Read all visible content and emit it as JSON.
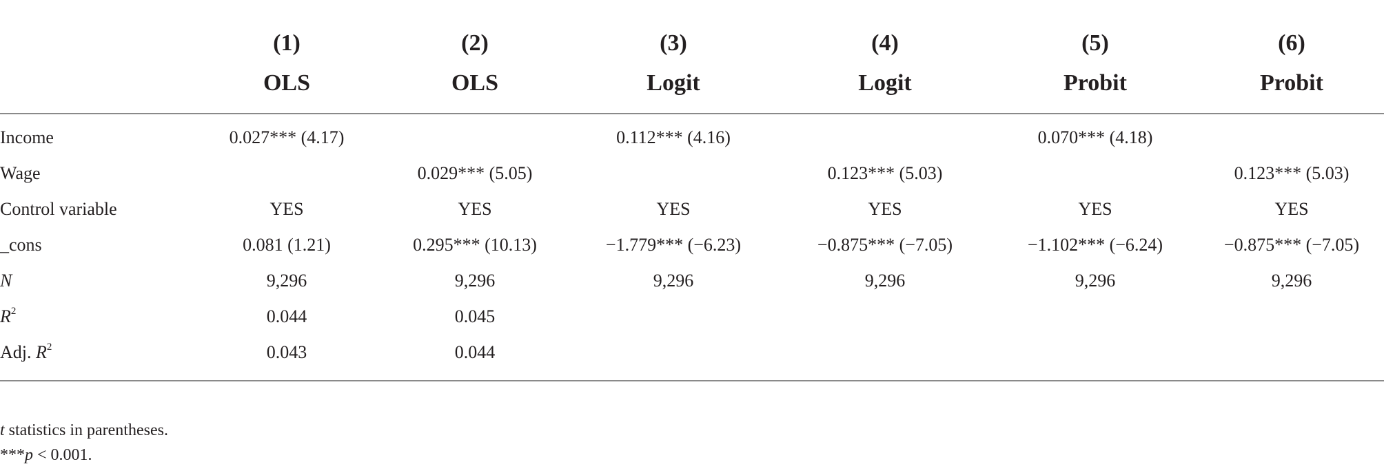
{
  "header": {
    "numbers": [
      "(1)",
      "(2)",
      "(3)",
      "(4)",
      "(5)",
      "(6)"
    ],
    "models": [
      "OLS",
      "OLS",
      "Logit",
      "Logit",
      "Probit",
      "Probit"
    ]
  },
  "rows": {
    "income": {
      "label": "Income",
      "cells": [
        "0.027*** (4.17)",
        "",
        "0.112*** (4.16)",
        "",
        "0.070*** (4.18)",
        ""
      ]
    },
    "wage": {
      "label": "Wage",
      "cells": [
        "",
        "0.029*** (5.05)",
        "",
        "0.123*** (5.03)",
        "",
        "0.123*** (5.03)"
      ]
    },
    "control": {
      "label": "Control variable",
      "cells": [
        "YES",
        "YES",
        "YES",
        "YES",
        "YES",
        "YES"
      ]
    },
    "cons": {
      "label": "_cons",
      "cells": [
        "0.081 (1.21)",
        "0.295*** (10.13)",
        "−1.779*** (−6.23)",
        "−0.875*** (−7.05)",
        "−1.102*** (−6.24)",
        "−0.875*** (−7.05)"
      ]
    },
    "n": {
      "label": "N",
      "cells": [
        "9,296",
        "9,296",
        "9,296",
        "9,296",
        "9,296",
        "9,296"
      ]
    },
    "r2": {
      "label": "R",
      "label_sup": "2",
      "cells": [
        "0.044",
        "0.045",
        "",
        "",
        "",
        ""
      ]
    },
    "adjr2": {
      "label_prefix": "Adj. ",
      "label": "R",
      "label_sup": "2",
      "cells": [
        "0.043",
        "0.044",
        "",
        "",
        "",
        ""
      ]
    }
  },
  "notes": {
    "t_italic": "t",
    "t_rest": " statistics in parentheses.",
    "p_stars": "***",
    "p_italic": "p",
    "p_rest": " < 0.001."
  }
}
